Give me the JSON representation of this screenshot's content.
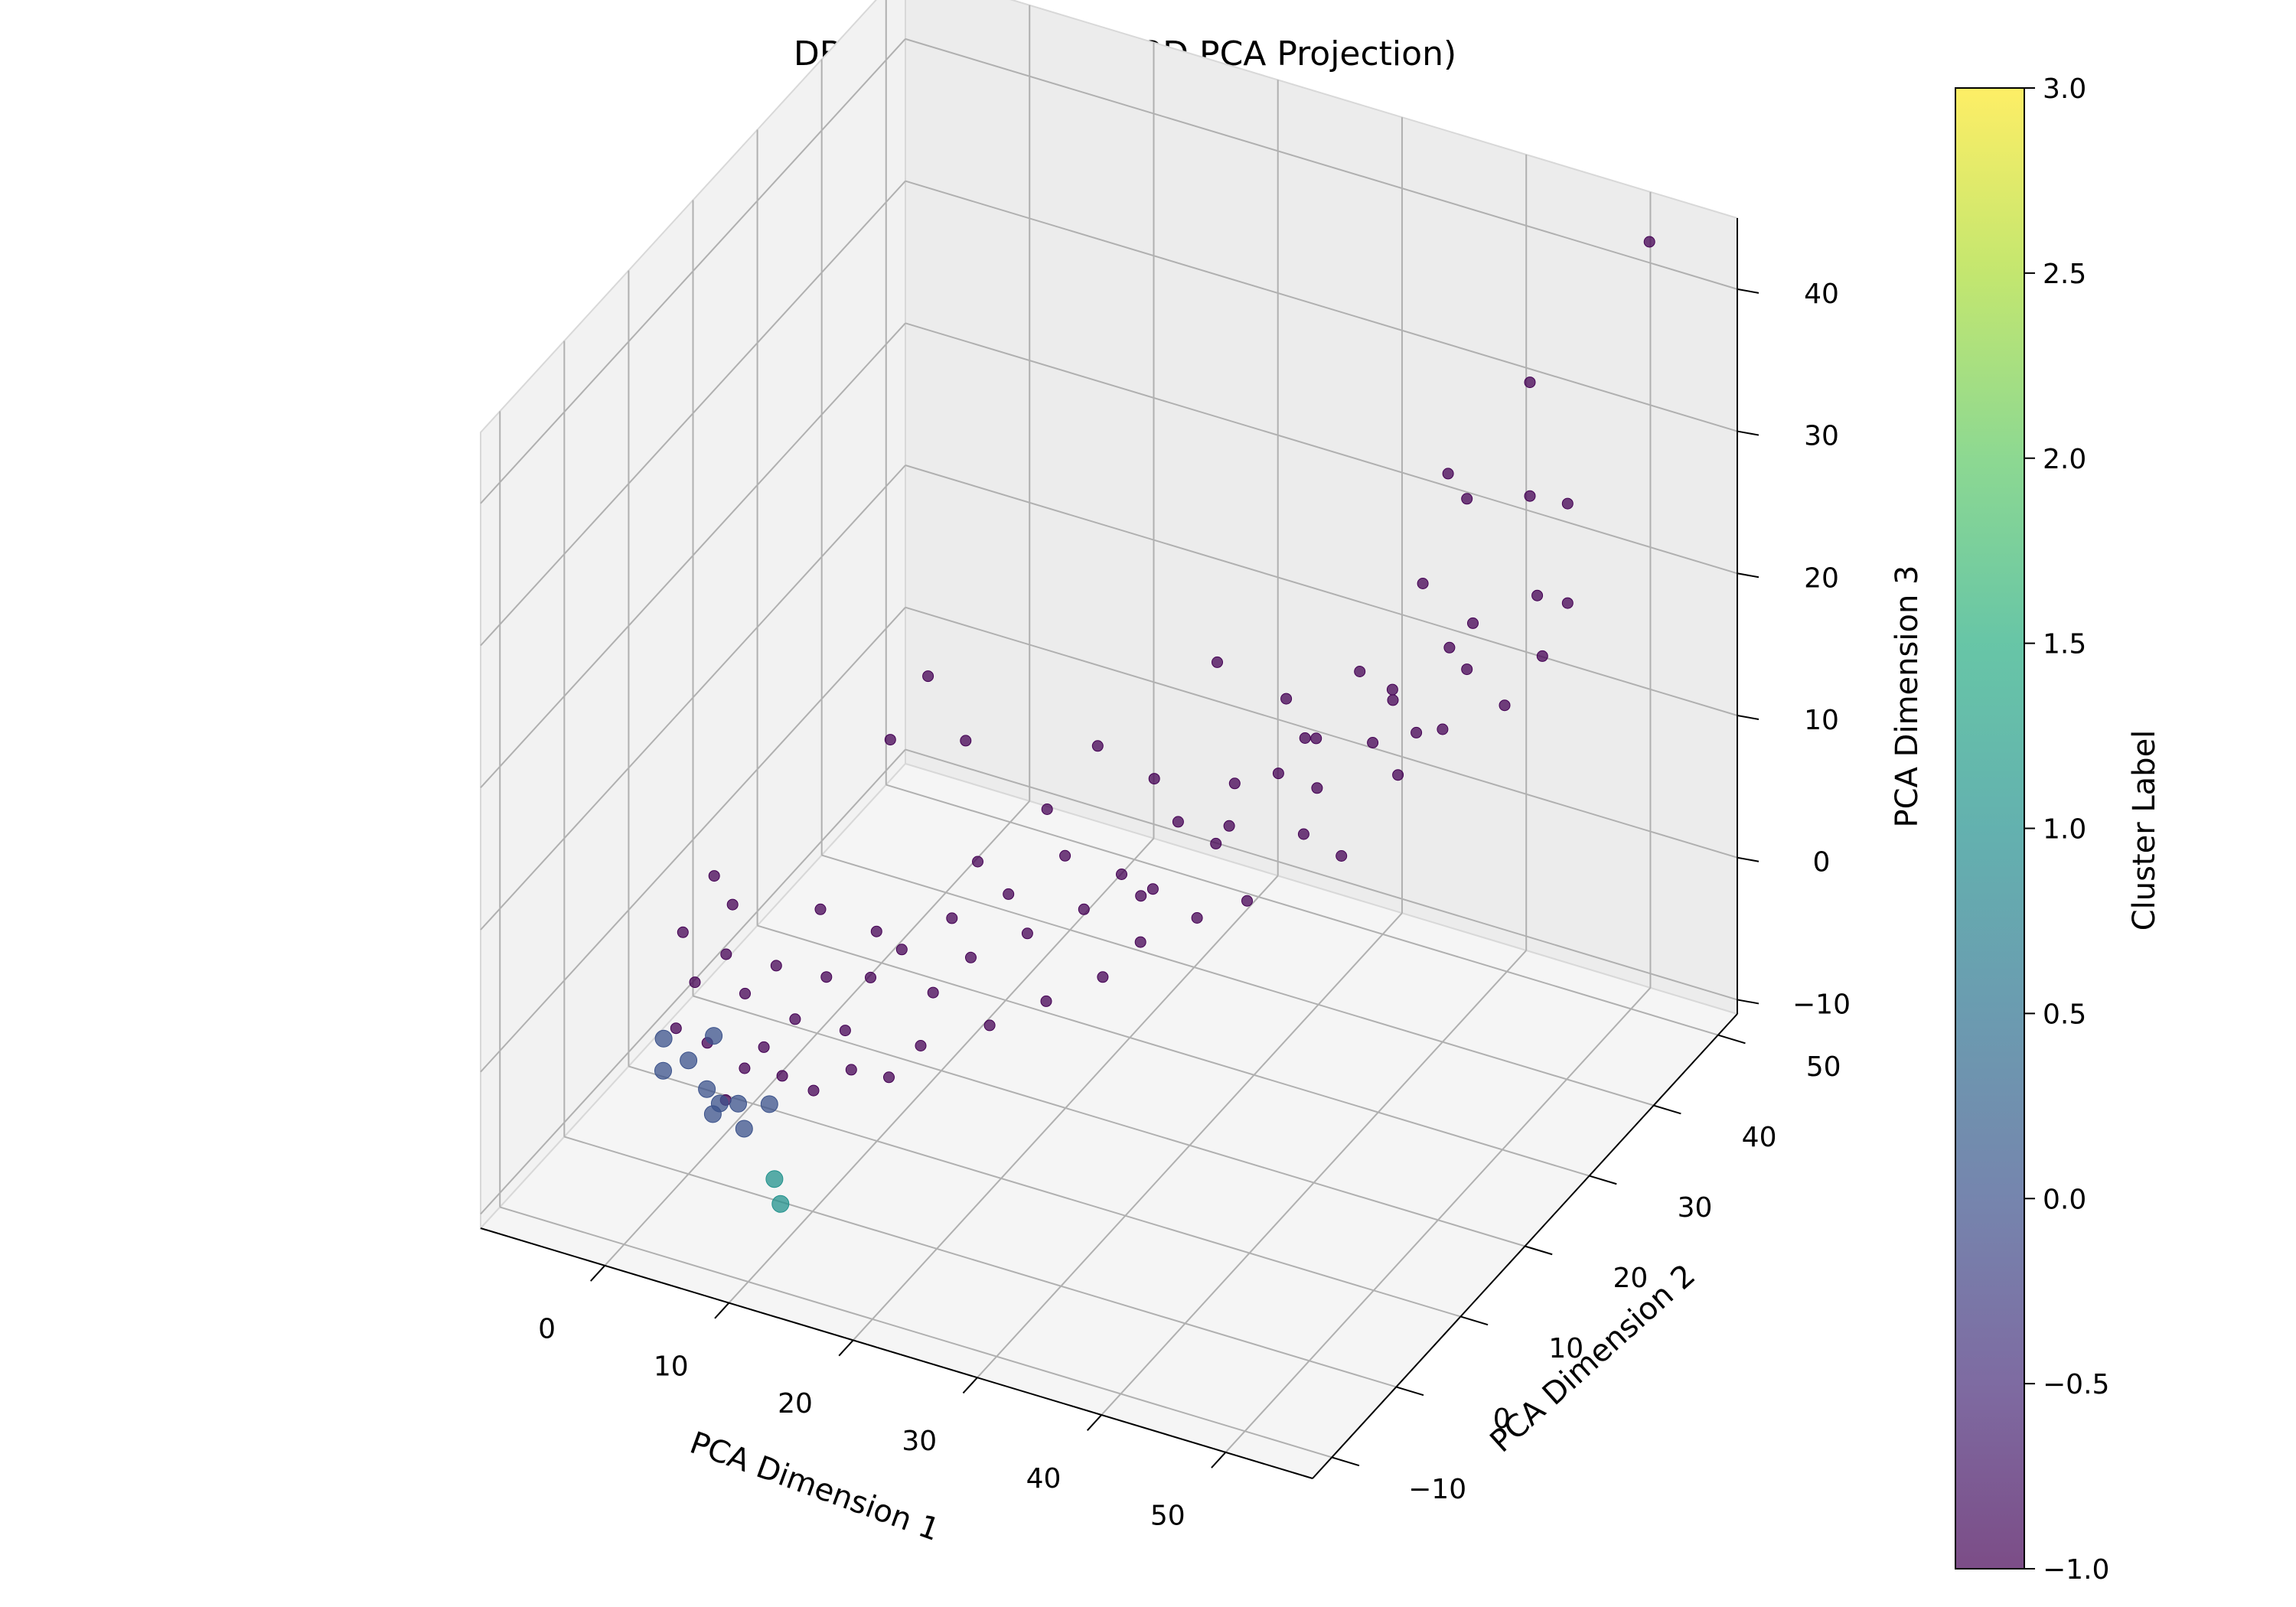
{
  "chart_data": {
    "type": "scatter",
    "projection": "3d",
    "title": "DBSCAN Clustering (3D PCA Projection)",
    "xlabel": "PCA Dimension 1",
    "ylabel": "PCA Dimension 2",
    "zlabel": "PCA Dimension 3",
    "xlim": [
      -10,
      57
    ],
    "ylim": [
      -13,
      53
    ],
    "zlim": [
      -11,
      45
    ],
    "xticks": [
      "0",
      "10",
      "20",
      "30",
      "40",
      "50"
    ],
    "yticks": [
      "−10",
      "0",
      "10",
      "20",
      "30",
      "40",
      "50"
    ],
    "zticks": [
      "−10",
      "0",
      "10",
      "20",
      "30",
      "40"
    ],
    "grid": true,
    "colormap": "viridis",
    "colorbar": {
      "label": "Cluster Label",
      "range": [
        -1.0,
        3.0
      ],
      "ticks": [
        "−1.0",
        "−0.5",
        "0.0",
        "0.5",
        "1.0",
        "1.5",
        "2.0",
        "2.5",
        "3.0"
      ]
    },
    "colors": {
      "noise": "#440154",
      "cluster_0": "#3b528b",
      "cluster_1": "#21918c",
      "pane": "#f2f2f2",
      "grid": "#b0b0b0"
    },
    "series": [
      {
        "cluster": -1,
        "points": [
          [
            52,
            49,
            44
          ],
          [
            46,
            42,
            36
          ],
          [
            42,
            37,
            31
          ],
          [
            43,
            38,
            29
          ],
          [
            46,
            42,
            28
          ],
          [
            48,
            44,
            27
          ],
          [
            41,
            35,
            24
          ],
          [
            48,
            44,
            20
          ],
          [
            44,
            37,
            21
          ],
          [
            38,
            31,
            19
          ],
          [
            43,
            38,
            17
          ],
          [
            41,
            34,
            14
          ],
          [
            45,
            40,
            14
          ],
          [
            47,
            42,
            17
          ],
          [
            35,
            30,
            14
          ],
          [
            38,
            33,
            13
          ],
          [
            39,
            35,
            10
          ],
          [
            33,
            28,
            12
          ],
          [
            34,
            30,
            7
          ],
          [
            36,
            32,
            5
          ],
          [
            30,
            27,
            11
          ],
          [
            29,
            26,
            7
          ],
          [
            31,
            27,
            3
          ],
          [
            27,
            24,
            9
          ],
          [
            26,
            22,
            5
          ],
          [
            28,
            25,
            2
          ],
          [
            24,
            21,
            6
          ],
          [
            25,
            22,
            1
          ],
          [
            22,
            19,
            4
          ],
          [
            21,
            18,
            8
          ],
          [
            23,
            20,
            -1
          ],
          [
            19,
            16,
            3
          ],
          [
            18,
            15,
            6
          ],
          [
            20,
            17,
            -2
          ],
          [
            16,
            13,
            2
          ],
          [
            17,
            14,
            -3
          ],
          [
            15,
            12,
            5
          ],
          [
            14,
            11,
            0
          ],
          [
            12,
            10,
            3
          ],
          [
            13,
            11,
            -4
          ],
          [
            10,
            9,
            1
          ],
          [
            11,
            8,
            5
          ],
          [
            9,
            7,
            -2
          ],
          [
            8,
            6,
            2
          ],
          [
            7,
            7,
            6
          ],
          [
            6,
            5,
            -1
          ],
          [
            5,
            4,
            3
          ],
          [
            4,
            4,
            -3
          ],
          [
            3,
            3,
            1
          ],
          [
            2,
            2,
            4
          ],
          [
            1,
            1,
            -2
          ],
          [
            0,
            1,
            2
          ],
          [
            -1,
            0,
            -1
          ],
          [
            2,
            3,
            7
          ],
          [
            0,
            4,
            8
          ],
          [
            -2,
            3,
            4
          ],
          [
            20,
            25,
            12
          ],
          [
            13,
            18,
            14
          ],
          [
            9,
            14,
            15
          ],
          [
            11,
            16,
            19
          ],
          [
            26,
            32,
            16
          ],
          [
            30,
            35,
            13
          ],
          [
            37,
            38,
            14
          ],
          [
            40,
            40,
            11
          ],
          [
            23,
            28,
            9
          ],
          [
            33,
            34,
            8
          ],
          [
            31,
            36,
            10
          ],
          [
            36,
            40,
            12
          ],
          [
            44,
            47,
            18
          ],
          [
            39,
            43,
            15
          ],
          [
            28,
            30,
            6
          ],
          [
            18,
            21,
            9
          ],
          [
            15,
            16,
            7
          ],
          [
            24,
            24,
            3
          ],
          [
            6,
            3,
            -4
          ],
          [
            4,
            1,
            -3
          ],
          [
            8,
            4,
            -5
          ],
          [
            10,
            6,
            -4
          ],
          [
            12,
            8,
            -5
          ],
          [
            3,
            0,
            -5
          ]
        ]
      },
      {
        "cluster": 0,
        "points": [
          [
            0,
            0,
            -3
          ],
          [
            2,
            -1,
            -4
          ],
          [
            4,
            0,
            -5
          ],
          [
            1,
            2,
            -2
          ],
          [
            -1,
            -2,
            -3
          ],
          [
            3,
            -2,
            -5
          ],
          [
            5,
            -1,
            -6
          ],
          [
            6,
            1,
            -5
          ],
          [
            -2,
            0,
            -2
          ],
          [
            2,
            1,
            -6
          ]
        ]
      },
      {
        "cluster": 1,
        "points": [
          [
            9,
            -4,
            -7
          ],
          [
            10,
            -5,
            -8
          ]
        ]
      }
    ]
  }
}
